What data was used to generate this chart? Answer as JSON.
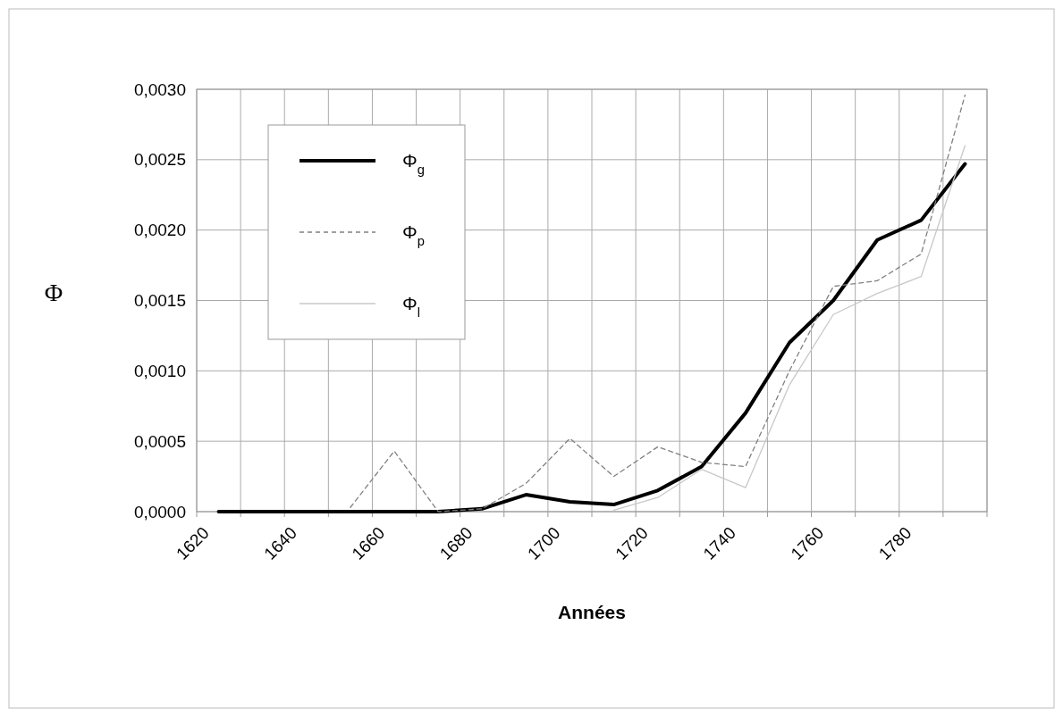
{
  "chart_data": {
    "type": "line",
    "xlabel": "Années",
    "ylabel": "Φ",
    "x": [
      1625,
      1635,
      1645,
      1655,
      1665,
      1675,
      1685,
      1695,
      1705,
      1715,
      1725,
      1735,
      1745,
      1755,
      1765,
      1775,
      1785,
      1795
    ],
    "series": [
      {
        "name": "Φ$_{g}$",
        "color": "#000000",
        "line_style": "solid",
        "values": [
          0,
          0,
          0,
          0,
          0,
          0,
          2e-05,
          0.00012,
          7e-05,
          5e-05,
          0.00015,
          0.00032,
          0.0007,
          0.0012,
          0.0015,
          0.00193,
          0.00207,
          0.00247
        ]
      },
      {
        "name": "Φ$_{p}$",
        "color": "#808080",
        "line_style": "dashed",
        "values": [
          null,
          null,
          null,
          3e-05,
          0.00043,
          0,
          2e-05,
          0.0002,
          0.00052,
          0.00025,
          0.00046,
          0.00035,
          0.00032,
          0.001,
          0.0016,
          0.00164,
          0.00183,
          0.00296
        ]
      },
      {
        "name": "Φ$_{l}$",
        "color": "#c8c8c8",
        "line_style": "solid",
        "values": [
          null,
          null,
          null,
          null,
          null,
          null,
          null,
          null,
          null,
          1e-05,
          0.0001,
          0.0003,
          0.00017,
          0.0009,
          0.0014,
          0.00155,
          0.00167,
          0.0026
        ]
      }
    ],
    "xlim": [
      1620,
      1800
    ],
    "xticks": [
      1620,
      {
        "value": 1630,
        "label": null
      },
      1640,
      {
        "value": 1650,
        "label": null
      },
      1660,
      {
        "value": 1670,
        "label": null
      },
      1680,
      {
        "value": 1690,
        "label": null
      },
      1700,
      {
        "value": 1710,
        "label": null
      },
      1720,
      {
        "value": 1730,
        "label": null
      },
      1740,
      {
        "value": 1750,
        "label": null
      },
      1760,
      {
        "value": 1770,
        "label": null
      },
      1780,
      {
        "value": 1790,
        "label": null
      },
      {
        "value": 1800,
        "label": null
      }
    ],
    "ylim": [
      0,
      0.003
    ],
    "yticks": [
      {
        "value": 0,
        "label": "0,0000"
      },
      {
        "value": 0.0005,
        "label": "0,0005"
      },
      {
        "value": 0.001,
        "label": "0,0010"
      },
      {
        "value": 0.0015,
        "label": "0,0015"
      },
      {
        "value": 0.002,
        "label": "0,0020"
      },
      {
        "value": 0.0025,
        "label": "0,0025"
      },
      {
        "value": 0.003,
        "label": "0,0030"
      }
    ],
    "grid": true,
    "legend": "top left",
    "marker": "none"
  }
}
